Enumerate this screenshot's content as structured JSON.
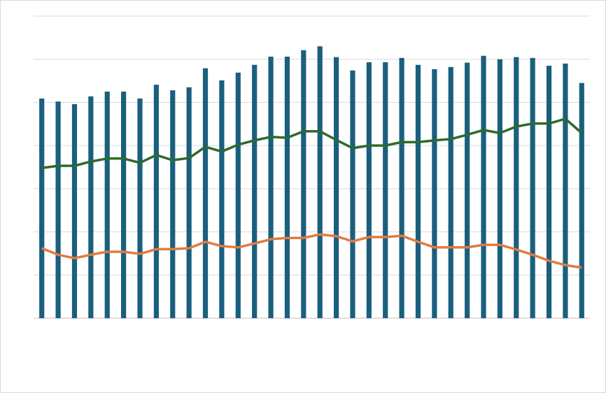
{
  "chart_data": {
    "type": "bar",
    "categories": [
      null,
      null,
      null,
      null,
      null,
      null,
      null,
      null,
      null,
      null,
      null,
      null,
      null,
      null,
      null,
      null,
      null,
      null,
      null,
      null,
      null,
      null,
      null,
      null,
      null,
      null,
      null,
      null,
      null,
      null,
      null,
      null,
      null,
      null
    ],
    "series": [
      {
        "type": "bar",
        "color": "#1b5f7e",
        "values": [
          5.09,
          5.02,
          4.96,
          5.14,
          5.25,
          5.25,
          5.09,
          5.41,
          5.28,
          5.35,
          5.79,
          5.51,
          5.69,
          5.87,
          6.06,
          6.06,
          6.21,
          6.3,
          6.05,
          5.74,
          5.93,
          5.93,
          6.03,
          5.87,
          5.77,
          5.82,
          5.92,
          6.08,
          6.0,
          6.05,
          6.03,
          5.85,
          5.9,
          5.45
        ]
      },
      {
        "type": "line",
        "color": "#2d6a2c",
        "values": [
          3.48,
          3.53,
          3.53,
          3.63,
          3.7,
          3.7,
          3.6,
          3.78,
          3.66,
          3.71,
          3.97,
          3.86,
          4.02,
          4.12,
          4.2,
          4.18,
          4.33,
          4.33,
          4.13,
          3.94,
          4.0,
          4.0,
          4.08,
          4.08,
          4.12,
          4.15,
          4.25,
          4.36,
          4.29,
          4.44,
          4.51,
          4.51,
          4.62,
          4.29
        ]
      },
      {
        "type": "line",
        "color": "#e07b3f",
        "values": [
          1.62,
          1.47,
          1.39,
          1.47,
          1.54,
          1.54,
          1.49,
          1.6,
          1.6,
          1.62,
          1.77,
          1.67,
          1.64,
          1.73,
          1.83,
          1.86,
          1.86,
          1.94,
          1.9,
          1.78,
          1.88,
          1.88,
          1.91,
          1.77,
          1.64,
          1.64,
          1.64,
          1.7,
          1.7,
          1.59,
          1.47,
          1.33,
          1.23,
          1.17
        ]
      }
    ],
    "ylim": [
      0,
      7
    ],
    "yticks": [
      0,
      1,
      2,
      3,
      4,
      5,
      6,
      7
    ],
    "grid": true
  }
}
